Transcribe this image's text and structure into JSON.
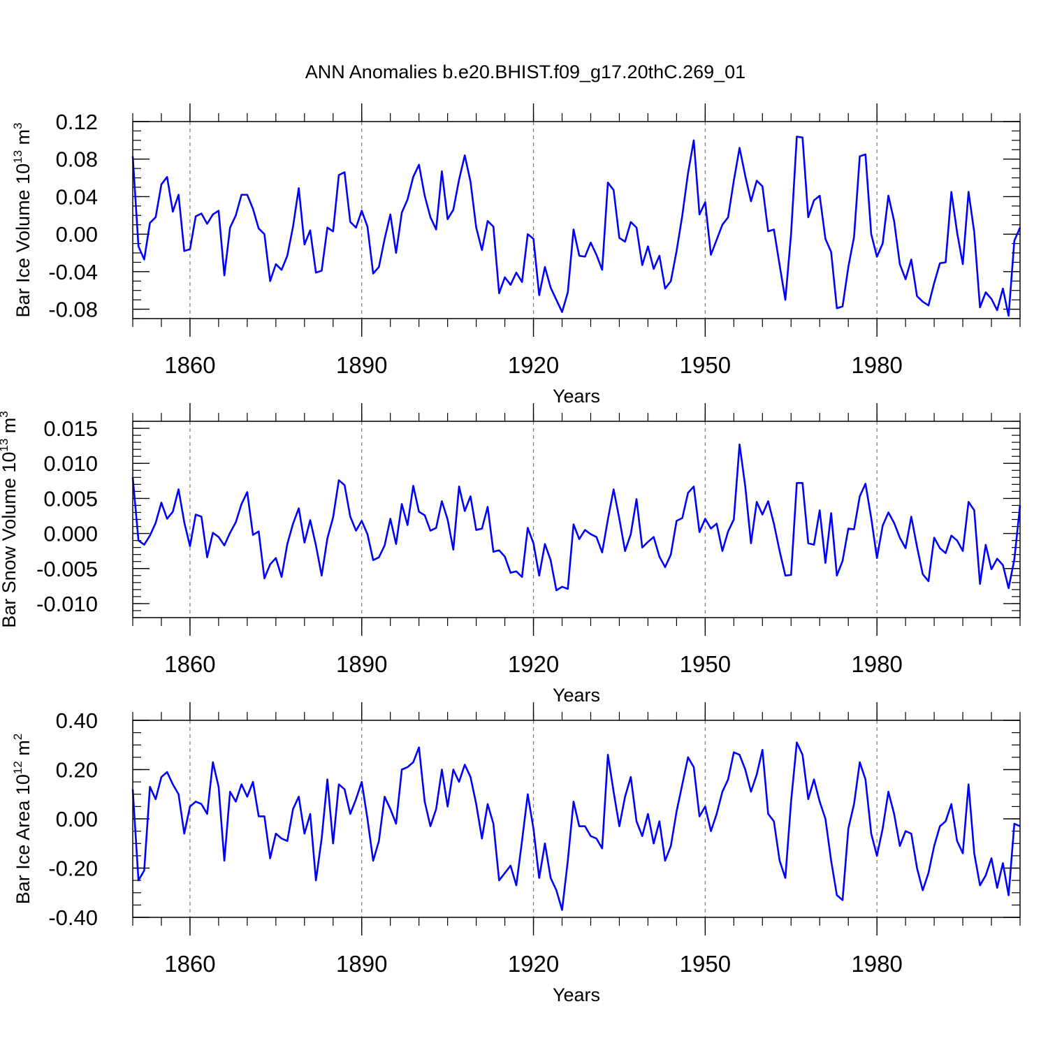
{
  "title": "ANN Anomalies b.e20.BHIST.f09_g17.20thC.269_01",
  "chart_data": [
    {
      "type": "line",
      "ylabel": "Bar Ice Volume 10",
      "ylabel_exp": "13",
      "ylabel_unit": " m",
      "ylabel_unit_exp": "3",
      "xlabel": "Years",
      "xlim": [
        1850,
        2005
      ],
      "ylim": [
        -0.09,
        0.12
      ],
      "yticks": [
        -0.08,
        -0.04,
        0.0,
        0.04,
        0.08,
        0.12
      ],
      "ytick_labels": [
        "-0.08",
        "-0.04",
        "0.00",
        "0.04",
        "0.08",
        "0.12"
      ],
      "yminor_step": 0.01,
      "xticks": [
        1860,
        1890,
        1920,
        1950,
        1980
      ],
      "xtick_labels": [
        "1860",
        "1890",
        "1920",
        "1950",
        "1980"
      ],
      "xminor_step": 5,
      "grid_x": true,
      "line_color": "#0000ff",
      "series": [
        {
          "name": "Bar Ice Volume",
          "x_start": 1850,
          "values": [
            0.083,
            -0.013,
            -0.027,
            0.012,
            0.018,
            0.053,
            0.061,
            0.024,
            0.042,
            -0.018,
            -0.016,
            0.019,
            0.022,
            0.011,
            0.021,
            0.025,
            -0.044,
            0.007,
            0.02,
            0.042,
            0.042,
            0.027,
            0.006,
            0.0,
            -0.05,
            -0.032,
            -0.038,
            -0.023,
            0.008,
            0.049,
            -0.011,
            0.004,
            -0.041,
            -0.039,
            0.007,
            0.003,
            0.063,
            0.066,
            0.013,
            0.007,
            0.025,
            0.008,
            -0.042,
            -0.035,
            -0.005,
            0.021,
            -0.02,
            0.023,
            0.037,
            0.061,
            0.074,
            0.041,
            0.018,
            0.005,
            0.067,
            0.016,
            0.026,
            0.058,
            0.084,
            0.056,
            0.007,
            -0.017,
            0.014,
            0.008,
            -0.063,
            -0.046,
            -0.054,
            -0.041,
            -0.051,
            0.0,
            -0.005,
            -0.065,
            -0.035,
            -0.057,
            -0.07,
            -0.083,
            -0.062,
            0.005,
            -0.023,
            -0.024,
            -0.009,
            -0.022,
            -0.038,
            0.055,
            0.047,
            -0.004,
            -0.008,
            0.013,
            0.007,
            -0.033,
            -0.013,
            -0.037,
            -0.023,
            -0.058,
            -0.05,
            -0.018,
            0.02,
            0.065,
            0.1,
            0.021,
            0.034,
            -0.022,
            -0.006,
            0.01,
            0.018,
            0.057,
            0.092,
            0.062,
            0.035,
            0.057,
            0.051,
            0.003,
            0.005,
            -0.033,
            -0.07,
            0.0,
            0.104,
            0.103,
            0.018,
            0.036,
            0.041,
            -0.005,
            -0.019,
            -0.079,
            -0.077,
            -0.035,
            -0.003,
            0.083,
            0.085,
            0.0,
            -0.024,
            -0.01,
            0.041,
            0.014,
            -0.032,
            -0.048,
            -0.027,
            -0.066,
            -0.072,
            -0.076,
            -0.052,
            -0.031,
            -0.03,
            0.045,
            0.002,
            -0.032,
            0.045,
            0.002,
            -0.078,
            -0.062,
            -0.069,
            -0.081,
            -0.058,
            -0.087,
            -0.007,
            0.007
          ]
        }
      ]
    },
    {
      "type": "line",
      "ylabel": "Bar Snow Volume 10",
      "ylabel_exp": "13",
      "ylabel_unit": " m",
      "ylabel_unit_exp": "3",
      "xlabel": "Years",
      "xlim": [
        1850,
        2005
      ],
      "ylim": [
        -0.012,
        0.016
      ],
      "yticks": [
        -0.01,
        -0.005,
        0.0,
        0.005,
        0.01,
        0.015
      ],
      "ytick_labels": [
        "-0.010",
        "-0.005",
        "0.000",
        "0.005",
        "0.010",
        "0.015"
      ],
      "yminor_step": 0.001,
      "xticks": [
        1860,
        1890,
        1920,
        1950,
        1980
      ],
      "xtick_labels": [
        "1860",
        "1890",
        "1920",
        "1950",
        "1980"
      ],
      "xminor_step": 5,
      "grid_x": true,
      "line_color": "#0000ff",
      "series": [
        {
          "name": "Bar Snow Volume",
          "x_start": 1850,
          "values": [
            0.008,
            -0.001,
            -0.0016,
            -0.0003,
            0.0015,
            0.0044,
            0.0021,
            0.0031,
            0.0063,
            0.0016,
            -0.0018,
            0.0027,
            0.0024,
            -0.0034,
            0.0001,
            -0.0005,
            -0.0017,
            0.0001,
            0.0016,
            0.0042,
            0.0059,
            -0.0002,
            0.0003,
            -0.0064,
            -0.0044,
            -0.0035,
            -0.0062,
            -0.0015,
            0.0014,
            0.0036,
            -0.0013,
            0.0019,
            -0.0017,
            -0.006,
            -0.0007,
            0.0023,
            0.0076,
            0.0069,
            0.0024,
            0.0004,
            0.0018,
            -0.0001,
            -0.0038,
            -0.0034,
            -0.0017,
            0.0021,
            -0.0015,
            0.0042,
            0.0012,
            0.0068,
            0.0031,
            0.0026,
            0.0004,
            0.0008,
            0.0046,
            0.002,
            -0.0023,
            0.0067,
            0.0032,
            0.0053,
            0.0005,
            0.0007,
            0.0038,
            -0.0026,
            -0.0024,
            -0.0033,
            -0.0056,
            -0.0054,
            -0.0062,
            0.0008,
            -0.0014,
            -0.006,
            -0.0015,
            -0.0038,
            -0.0081,
            -0.0076,
            -0.0079,
            0.0013,
            -0.0008,
            0.0005,
            -0.0001,
            -0.0005,
            -0.0027,
            0.002,
            0.0063,
            0.0021,
            -0.0025,
            -0.0001,
            0.0049,
            -0.002,
            -0.0012,
            -0.0005,
            -0.0033,
            -0.0048,
            -0.003,
            0.0018,
            0.0022,
            0.0058,
            0.0067,
            0.0002,
            0.0021,
            0.0007,
            0.0014,
            -0.0025,
            0.0003,
            0.002,
            0.0127,
            0.0067,
            -0.0014,
            0.0045,
            0.0027,
            0.0046,
            0.0014,
            -0.0025,
            -0.006,
            -0.0059,
            0.0072,
            0.0072,
            -0.0014,
            -0.0016,
            0.0033,
            -0.0042,
            0.0029,
            -0.006,
            -0.0039,
            0.0007,
            0.0006,
            0.0053,
            0.0071,
            0.0022,
            -0.0035,
            0.0011,
            0.003,
            0.0015,
            -0.0006,
            -0.0021,
            0.0024,
            -0.0019,
            -0.0058,
            -0.0068,
            -0.0006,
            -0.0021,
            -0.0028,
            -0.0003,
            -0.001,
            -0.0025,
            0.0045,
            0.0033,
            -0.0072,
            -0.0016,
            -0.0051,
            -0.0036,
            -0.0045,
            -0.0078,
            -0.0037,
            0.004
          ]
        }
      ]
    },
    {
      "type": "line",
      "ylabel": "Bar Ice Area 10",
      "ylabel_exp": "12",
      "ylabel_unit": " m",
      "ylabel_unit_exp": "2",
      "xlabel": "Years",
      "xlim": [
        1850,
        2005
      ],
      "ylim": [
        -0.4,
        0.4
      ],
      "yticks": [
        -0.4,
        -0.2,
        0.0,
        0.2,
        0.4
      ],
      "ytick_labels": [
        "-0.40",
        "-0.20",
        "0.00",
        "0.20",
        "0.40"
      ],
      "yminor_step": 0.05,
      "xticks": [
        1860,
        1890,
        1920,
        1950,
        1980
      ],
      "xtick_labels": [
        "1860",
        "1890",
        "1920",
        "1950",
        "1980"
      ],
      "xminor_step": 5,
      "grid_x": true,
      "line_color": "#0000ff",
      "series": [
        {
          "name": "Bar Ice Area",
          "x_start": 1850,
          "values": [
            0.12,
            -0.25,
            -0.21,
            0.13,
            0.08,
            0.17,
            0.19,
            0.14,
            0.1,
            -0.06,
            0.05,
            0.07,
            0.06,
            0.02,
            0.23,
            0.13,
            -0.17,
            0.11,
            0.07,
            0.14,
            0.09,
            0.15,
            0.01,
            0.01,
            -0.16,
            -0.06,
            -0.08,
            -0.09,
            0.04,
            0.09,
            -0.06,
            0.02,
            -0.25,
            -0.08,
            0.16,
            -0.1,
            0.14,
            0.12,
            0.02,
            0.08,
            0.15,
            0.0,
            -0.17,
            -0.09,
            0.09,
            0.04,
            -0.02,
            0.2,
            0.21,
            0.23,
            0.29,
            0.07,
            -0.03,
            0.04,
            0.2,
            0.05,
            0.2,
            0.15,
            0.22,
            0.17,
            0.06,
            -0.08,
            0.06,
            -0.02,
            -0.25,
            -0.22,
            -0.19,
            -0.27,
            -0.09,
            0.1,
            -0.04,
            -0.24,
            -0.1,
            -0.24,
            -0.29,
            -0.37,
            -0.17,
            0.07,
            -0.03,
            -0.03,
            -0.07,
            -0.08,
            -0.12,
            0.26,
            0.11,
            -0.03,
            0.09,
            0.17,
            -0.01,
            -0.07,
            0.02,
            -0.1,
            -0.01,
            -0.17,
            -0.11,
            0.03,
            0.14,
            0.25,
            0.21,
            0.01,
            0.05,
            -0.05,
            0.02,
            0.11,
            0.16,
            0.27,
            0.26,
            0.2,
            0.11,
            0.18,
            0.28,
            0.02,
            -0.01,
            -0.17,
            -0.24,
            0.07,
            0.31,
            0.26,
            0.08,
            0.16,
            0.07,
            0.0,
            -0.17,
            -0.31,
            -0.33,
            -0.04,
            0.06,
            0.23,
            0.16,
            -0.06,
            -0.15,
            -0.04,
            0.11,
            0.02,
            -0.11,
            -0.05,
            -0.06,
            -0.2,
            -0.29,
            -0.22,
            -0.11,
            -0.03,
            -0.01,
            0.06,
            -0.09,
            -0.14,
            0.14,
            -0.14,
            -0.27,
            -0.23,
            -0.16,
            -0.28,
            -0.18,
            -0.31,
            -0.02,
            -0.03
          ]
        }
      ]
    }
  ]
}
